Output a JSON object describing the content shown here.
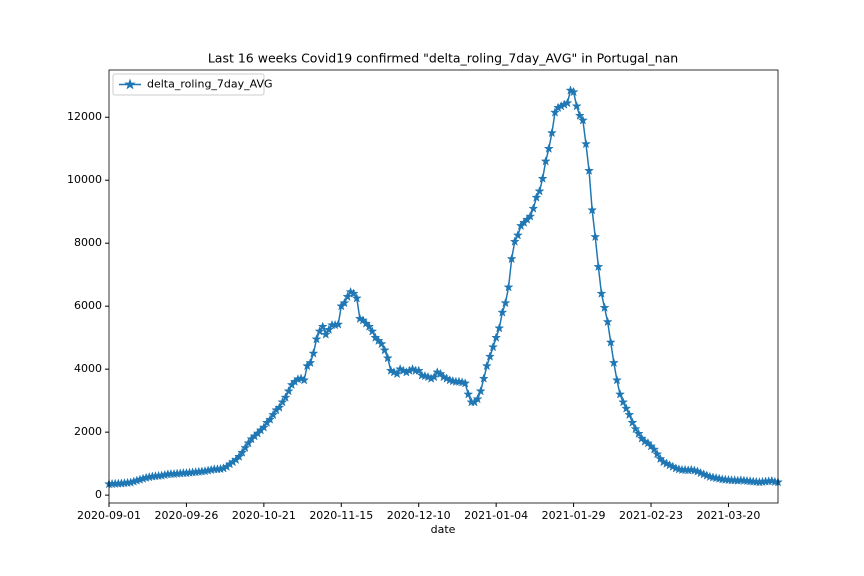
{
  "chart_data": {
    "type": "line",
    "title": "Last 16 weeks Covid19 confirmed \"delta_roling_7day_AVG\" in Portugal_nan",
    "x_label": "date",
    "x": [
      "2020-09-01",
      "2020-09-02",
      "2020-09-03",
      "2020-09-04",
      "2020-09-05",
      "2020-09-06",
      "2020-09-07",
      "2020-09-08",
      "2020-09-09",
      "2020-09-10",
      "2020-09-11",
      "2020-09-12",
      "2020-09-13",
      "2020-09-14",
      "2020-09-15",
      "2020-09-16",
      "2020-09-17",
      "2020-09-18",
      "2020-09-19",
      "2020-09-20",
      "2020-09-21",
      "2020-09-22",
      "2020-09-23",
      "2020-09-24",
      "2020-09-25",
      "2020-09-26",
      "2020-09-27",
      "2020-09-28",
      "2020-09-29",
      "2020-09-30",
      "2020-10-01",
      "2020-10-02",
      "2020-10-03",
      "2020-10-04",
      "2020-10-05",
      "2020-10-06",
      "2020-10-07",
      "2020-10-08",
      "2020-10-09",
      "2020-10-10",
      "2020-10-11",
      "2020-10-12",
      "2020-10-13",
      "2020-10-14",
      "2020-10-15",
      "2020-10-16",
      "2020-10-17",
      "2020-10-18",
      "2020-10-19",
      "2020-10-20",
      "2020-10-21",
      "2020-10-22",
      "2020-10-23",
      "2020-10-24",
      "2020-10-25",
      "2020-10-26",
      "2020-10-27",
      "2020-10-28",
      "2020-10-29",
      "2020-10-30",
      "2020-10-31",
      "2020-11-01",
      "2020-11-02",
      "2020-11-03",
      "2020-11-04",
      "2020-11-05",
      "2020-11-06",
      "2020-11-07",
      "2020-11-08",
      "2020-11-09",
      "2020-11-10",
      "2020-11-11",
      "2020-11-12",
      "2020-11-13",
      "2020-11-14",
      "2020-11-15",
      "2020-11-16",
      "2020-11-17",
      "2020-11-18",
      "2020-11-19",
      "2020-11-20",
      "2020-11-21",
      "2020-11-22",
      "2020-11-23",
      "2020-11-24",
      "2020-11-25",
      "2020-11-26",
      "2020-11-27",
      "2020-11-28",
      "2020-11-29",
      "2020-11-30",
      "2020-12-01",
      "2020-12-02",
      "2020-12-03",
      "2020-12-04",
      "2020-12-05",
      "2020-12-06",
      "2020-12-07",
      "2020-12-08",
      "2020-12-09",
      "2020-12-10",
      "2020-12-11",
      "2020-12-12",
      "2020-12-13",
      "2020-12-14",
      "2020-12-15",
      "2020-12-16",
      "2020-12-17",
      "2020-12-18",
      "2020-12-19",
      "2020-12-20",
      "2020-12-21",
      "2020-12-22",
      "2020-12-23",
      "2020-12-24",
      "2020-12-25",
      "2020-12-26",
      "2020-12-27",
      "2020-12-28",
      "2020-12-29",
      "2020-12-30",
      "2020-12-31",
      "2021-01-01",
      "2021-01-02",
      "2021-01-03",
      "2021-01-04",
      "2021-01-05",
      "2021-01-06",
      "2021-01-07",
      "2021-01-08",
      "2021-01-09",
      "2021-01-10",
      "2021-01-11",
      "2021-01-12",
      "2021-01-13",
      "2021-01-14",
      "2021-01-15",
      "2021-01-16",
      "2021-01-17",
      "2021-01-18",
      "2021-01-19",
      "2021-01-20",
      "2021-01-21",
      "2021-01-22",
      "2021-01-23",
      "2021-01-24",
      "2021-01-25",
      "2021-01-26",
      "2021-01-27",
      "2021-01-28",
      "2021-01-29",
      "2021-01-30",
      "2021-01-31",
      "2021-02-01",
      "2021-02-02",
      "2021-02-03",
      "2021-02-04",
      "2021-02-05",
      "2021-02-06",
      "2021-02-07",
      "2021-02-08",
      "2021-02-09",
      "2021-02-10",
      "2021-02-11",
      "2021-02-12",
      "2021-02-13",
      "2021-02-14",
      "2021-02-15",
      "2021-02-16",
      "2021-02-17",
      "2021-02-18",
      "2021-02-19",
      "2021-02-20",
      "2021-02-21",
      "2021-02-22",
      "2021-02-23",
      "2021-02-24",
      "2021-02-25",
      "2021-02-26",
      "2021-02-27",
      "2021-02-28",
      "2021-03-01",
      "2021-03-02",
      "2021-03-03",
      "2021-03-04",
      "2021-03-05",
      "2021-03-06",
      "2021-03-07",
      "2021-03-08",
      "2021-03-09",
      "2021-03-10",
      "2021-03-11",
      "2021-03-12",
      "2021-03-13",
      "2021-03-14",
      "2021-03-15",
      "2021-03-16",
      "2021-03-17",
      "2021-03-18",
      "2021-03-19",
      "2021-03-20",
      "2021-03-21",
      "2021-03-22",
      "2021-03-23",
      "2021-03-24",
      "2021-03-25",
      "2021-03-26",
      "2021-03-27",
      "2021-03-28",
      "2021-03-29",
      "2021-03-30",
      "2021-03-31",
      "2021-04-01",
      "2021-04-02",
      "2021-04-03",
      "2021-04-04",
      "2021-04-05"
    ],
    "series": [
      {
        "name": "delta_roling_7day_AVG",
        "color": "#1f77b4",
        "marker": "star",
        "values": [
          350,
          355,
          360,
          365,
          370,
          380,
          390,
          400,
          430,
          460,
          490,
          520,
          550,
          570,
          590,
          600,
          610,
          620,
          640,
          660,
          670,
          670,
          680,
          690,
          700,
          700,
          710,
          720,
          730,
          740,
          750,
          760,
          780,
          800,
          820,
          820,
          830,
          850,
          900,
          980,
          1050,
          1120,
          1220,
          1350,
          1500,
          1650,
          1780,
          1870,
          1960,
          2060,
          2150,
          2300,
          2400,
          2550,
          2700,
          2780,
          2950,
          3100,
          3300,
          3500,
          3600,
          3680,
          3700,
          3650,
          4100,
          4200,
          4500,
          4950,
          5200,
          5350,
          5100,
          5250,
          5400,
          5400,
          5420,
          6000,
          6100,
          6300,
          6450,
          6400,
          6250,
          5600,
          5550,
          5450,
          5350,
          5200,
          5000,
          4900,
          4800,
          4600,
          4350,
          3950,
          3900,
          3850,
          4000,
          3950,
          3900,
          3950,
          4000,
          3950,
          3950,
          3800,
          3780,
          3750,
          3700,
          3750,
          3900,
          3850,
          3750,
          3700,
          3650,
          3620,
          3600,
          3600,
          3580,
          3550,
          3200,
          2950,
          2950,
          3050,
          3300,
          3700,
          4100,
          4400,
          4700,
          5000,
          5300,
          5800,
          6100,
          6600,
          7500,
          8050,
          8250,
          8550,
          8650,
          8750,
          8850,
          9100,
          9450,
          9650,
          10050,
          10600,
          11000,
          11500,
          12150,
          12300,
          12350,
          12400,
          12450,
          12850,
          12800,
          12350,
          12050,
          11900,
          11150,
          10300,
          9050,
          8200,
          7250,
          6400,
          5950,
          5500,
          4850,
          4200,
          3650,
          3200,
          2950,
          2750,
          2550,
          2300,
          2100,
          1950,
          1800,
          1700,
          1650,
          1550,
          1450,
          1300,
          1150,
          1050,
          1000,
          950,
          900,
          850,
          820,
          800,
          800,
          790,
          800,
          780,
          750,
          700,
          660,
          620,
          580,
          560,
          540,
          520,
          500,
          490,
          480,
          470,
          470,
          460,
          470,
          460,
          450,
          440,
          430,
          420,
          410,
          420,
          430,
          440,
          450,
          420,
          410
        ]
      }
    ],
    "xlim": [
      "2020-09-01",
      "2021-04-05"
    ],
    "xticks": [
      "2020-09-01",
      "2020-09-26",
      "2020-10-21",
      "2020-11-15",
      "2020-12-10",
      "2021-01-04",
      "2021-01-29",
      "2021-02-23",
      "2021-03-20"
    ],
    "ylim": [
      -250,
      13500
    ],
    "yticks": [
      0,
      2000,
      4000,
      6000,
      8000,
      10000,
      12000
    ],
    "legend": "upper left",
    "grid": false
  }
}
